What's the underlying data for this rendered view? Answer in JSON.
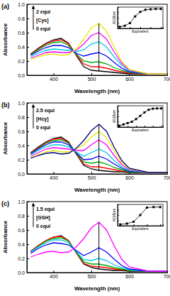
{
  "chart_data": [
    {
      "type": "line",
      "title": "(a)",
      "annotations": [
        "2 equi",
        "[Cys]",
        "0 equi"
      ],
      "x_label": "Wavelength (nm)",
      "y_label": "Absorbance",
      "x": [
        340,
        360,
        380,
        400,
        420,
        440,
        460,
        480,
        500,
        520,
        540,
        560,
        580,
        600,
        650,
        700
      ],
      "series": [
        {
          "color": "#000000",
          "values": [
            0.3,
            0.38,
            0.45,
            0.5,
            0.52,
            0.45,
            0.28,
            0.12,
            0.07,
            0.06,
            0.05,
            0.04,
            0.03,
            0.02,
            0.02,
            0.02
          ]
        },
        {
          "color": "#ff0000",
          "values": [
            0.3,
            0.37,
            0.44,
            0.48,
            0.5,
            0.44,
            0.29,
            0.16,
            0.12,
            0.12,
            0.1,
            0.07,
            0.05,
            0.03,
            0.02,
            0.02
          ]
        },
        {
          "color": "#00aa00",
          "values": [
            0.29,
            0.36,
            0.42,
            0.46,
            0.47,
            0.42,
            0.3,
            0.2,
            0.18,
            0.19,
            0.16,
            0.11,
            0.07,
            0.04,
            0.02,
            0.02
          ]
        },
        {
          "color": "#0000ff",
          "values": [
            0.28,
            0.34,
            0.39,
            0.42,
            0.42,
            0.39,
            0.31,
            0.27,
            0.3,
            0.32,
            0.27,
            0.18,
            0.1,
            0.05,
            0.02,
            0.02
          ]
        },
        {
          "color": "#00c8e8",
          "values": [
            0.26,
            0.31,
            0.35,
            0.37,
            0.36,
            0.35,
            0.33,
            0.36,
            0.44,
            0.47,
            0.4,
            0.26,
            0.14,
            0.06,
            0.02,
            0.02
          ]
        },
        {
          "color": "#ff00ff",
          "values": [
            0.24,
            0.28,
            0.32,
            0.33,
            0.32,
            0.32,
            0.35,
            0.44,
            0.56,
            0.6,
            0.51,
            0.33,
            0.17,
            0.07,
            0.02,
            0.02
          ]
        },
        {
          "color": "#e8e800",
          "values": [
            0.22,
            0.26,
            0.29,
            0.3,
            0.28,
            0.29,
            0.37,
            0.51,
            0.67,
            0.73,
            0.62,
            0.4,
            0.2,
            0.08,
            0.02,
            0.02
          ]
        }
      ],
      "xlim": [
        330,
        700
      ],
      "ylim": [
        0,
        1.0
      ],
      "xticks": [
        400,
        500,
        600,
        700
      ],
      "yticks": [
        {
          "value": 0,
          "label": "0.0"
        },
        {
          "value": 0.2,
          "label": "0.2"
        },
        {
          "value": 0.4,
          "label": "0.4"
        },
        {
          "value": 0.6,
          "label": "0.6"
        },
        {
          "value": 0.8,
          "label": "0.8"
        },
        {
          "value": 1.0,
          "label": "1.0"
        }
      ]
    },
    {
      "type": "line",
      "x_label": "Equivalent",
      "y_label": "A518nm",
      "x": [
        0,
        0.25,
        0.5,
        0.75,
        1,
        1.25,
        1.5,
        1.75,
        2
      ],
      "series": [
        {
          "color": "#000000",
          "marker": "square",
          "values": [
            0.06,
            0.1,
            0.2,
            0.45,
            0.62,
            0.7,
            0.72,
            0.73,
            0.73
          ]
        }
      ],
      "xlim": [
        -0.1,
        2.1
      ],
      "ylim": [
        0,
        0.8
      ],
      "xticks": [
        0,
        0.5,
        1,
        1.5,
        2
      ],
      "yticks": [
        0,
        0.2,
        0.4,
        0.6,
        0.8
      ],
      "tick_labels": false
    },
    {
      "type": "line",
      "title": "(b)",
      "annotations": [
        "2.5 equi",
        "[Hcy]",
        "0 equi"
      ],
      "x_label": "Wavelength (nm)",
      "y_label": "Absorbance",
      "x": [
        340,
        360,
        380,
        400,
        420,
        440,
        460,
        480,
        500,
        520,
        540,
        560,
        580,
        600,
        650,
        700
      ],
      "series": [
        {
          "color": "#000000",
          "values": [
            0.3,
            0.38,
            0.45,
            0.5,
            0.52,
            0.45,
            0.28,
            0.12,
            0.07,
            0.05,
            0.04,
            0.03,
            0.03,
            0.02,
            0.02,
            0.02
          ]
        },
        {
          "color": "#ff0000",
          "values": [
            0.3,
            0.37,
            0.44,
            0.49,
            0.5,
            0.44,
            0.28,
            0.14,
            0.1,
            0.1,
            0.08,
            0.06,
            0.04,
            0.03,
            0.02,
            0.02
          ]
        },
        {
          "color": "#00aa00",
          "values": [
            0.29,
            0.36,
            0.43,
            0.47,
            0.48,
            0.43,
            0.29,
            0.17,
            0.15,
            0.17,
            0.14,
            0.09,
            0.06,
            0.03,
            0.02,
            0.02
          ]
        },
        {
          "color": "#0000ff",
          "values": [
            0.28,
            0.35,
            0.41,
            0.45,
            0.45,
            0.41,
            0.3,
            0.2,
            0.21,
            0.25,
            0.21,
            0.14,
            0.08,
            0.04,
            0.02,
            0.02
          ]
        },
        {
          "color": "#00c8e8",
          "values": [
            0.27,
            0.33,
            0.38,
            0.41,
            0.41,
            0.38,
            0.31,
            0.25,
            0.3,
            0.35,
            0.3,
            0.19,
            0.1,
            0.05,
            0.02,
            0.02
          ]
        },
        {
          "color": "#ff00ff",
          "values": [
            0.25,
            0.3,
            0.35,
            0.37,
            0.36,
            0.35,
            0.33,
            0.33,
            0.41,
            0.48,
            0.41,
            0.26,
            0.13,
            0.06,
            0.02,
            0.02
          ]
        },
        {
          "color": "#e8e800",
          "values": [
            0.23,
            0.27,
            0.31,
            0.33,
            0.31,
            0.31,
            0.35,
            0.41,
            0.52,
            0.6,
            0.51,
            0.33,
            0.16,
            0.07,
            0.02,
            0.02
          ]
        },
        {
          "color": "#000080",
          "values": [
            0.22,
            0.26,
            0.29,
            0.3,
            0.28,
            0.29,
            0.36,
            0.47,
            0.61,
            0.7,
            0.6,
            0.38,
            0.19,
            0.08,
            0.02,
            0.02
          ]
        }
      ],
      "xlim": [
        330,
        700
      ],
      "ylim": [
        0,
        1.0
      ],
      "xticks": [
        400,
        500,
        600,
        700
      ],
      "yticks": [
        {
          "value": 0,
          "label": "0.0"
        },
        {
          "value": 0.2,
          "label": "0.2"
        },
        {
          "value": 0.4,
          "label": "0.4"
        },
        {
          "value": 0.6,
          "label": "0.6"
        },
        {
          "value": 0.8,
          "label": "0.8"
        },
        {
          "value": 1.0,
          "label": "1.0"
        }
      ]
    },
    {
      "type": "line",
      "x_label": "Equivalent",
      "y_label": "A518nm",
      "x": [
        0,
        0.25,
        0.5,
        0.75,
        1,
        1.25,
        1.5,
        1.75,
        2,
        2.25,
        2.5
      ],
      "series": [
        {
          "color": "#000000",
          "marker": "square",
          "values": [
            0.05,
            0.1,
            0.15,
            0.2,
            0.3,
            0.42,
            0.55,
            0.65,
            0.69,
            0.7,
            0.7
          ]
        }
      ],
      "xlim": [
        -0.1,
        2.6
      ],
      "ylim": [
        0,
        0.8
      ],
      "xticks": [
        0,
        0.5,
        1,
        1.5,
        2,
        2.5
      ],
      "yticks": [
        0,
        0.2,
        0.4,
        0.6,
        0.8
      ],
      "tick_labels": false
    },
    {
      "type": "line",
      "title": "(c)",
      "annotations": [
        "1.5 equi",
        "[GSH]",
        "0 equi"
      ],
      "x_label": "Wavelength (nm)",
      "y_label": "Absorbance",
      "x": [
        340,
        360,
        380,
        400,
        420,
        440,
        460,
        480,
        500,
        520,
        540,
        560,
        580,
        600,
        650,
        700
      ],
      "series": [
        {
          "color": "#000000",
          "values": [
            0.3,
            0.38,
            0.45,
            0.5,
            0.52,
            0.45,
            0.28,
            0.12,
            0.07,
            0.05,
            0.04,
            0.03,
            0.03,
            0.02,
            0.02,
            0.02
          ]
        },
        {
          "color": "#ff0000",
          "values": [
            0.3,
            0.38,
            0.45,
            0.5,
            0.51,
            0.45,
            0.28,
            0.13,
            0.09,
            0.08,
            0.07,
            0.05,
            0.04,
            0.03,
            0.02,
            0.02
          ]
        },
        {
          "color": "#00aa00",
          "values": [
            0.29,
            0.37,
            0.44,
            0.48,
            0.49,
            0.44,
            0.29,
            0.15,
            0.12,
            0.12,
            0.1,
            0.07,
            0.05,
            0.03,
            0.02,
            0.02
          ]
        },
        {
          "color": "#00c8e8",
          "values": [
            0.29,
            0.36,
            0.42,
            0.46,
            0.46,
            0.42,
            0.3,
            0.18,
            0.17,
            0.2,
            0.17,
            0.11,
            0.07,
            0.04,
            0.02,
            0.02
          ]
        },
        {
          "color": "#0000ff",
          "values": [
            0.27,
            0.34,
            0.39,
            0.42,
            0.41,
            0.39,
            0.31,
            0.24,
            0.29,
            0.35,
            0.29,
            0.19,
            0.1,
            0.05,
            0.02,
            0.02
          ]
        },
        {
          "color": "#ff00ff",
          "values": [
            0.22,
            0.26,
            0.29,
            0.3,
            0.28,
            0.29,
            0.36,
            0.48,
            0.63,
            0.71,
            0.6,
            0.38,
            0.19,
            0.08,
            0.02,
            0.02
          ]
        }
      ],
      "xlim": [
        330,
        700
      ],
      "ylim": [
        0,
        1.0
      ],
      "xticks": [
        400,
        500,
        600,
        700
      ],
      "yticks": [
        {
          "value": 0,
          "label": "0.0"
        },
        {
          "value": 0.2,
          "label": "0.2"
        },
        {
          "value": 0.4,
          "label": "0.4"
        },
        {
          "value": 0.6,
          "label": "0.6"
        },
        {
          "value": 0.8,
          "label": "0.8"
        },
        {
          "value": 1.0,
          "label": "1.0"
        }
      ]
    },
    {
      "type": "line",
      "x_label": "Equivalent",
      "y_label": "A518nm",
      "x": [
        0,
        0.25,
        0.5,
        0.75,
        1,
        1.25,
        1.5
      ],
      "series": [
        {
          "color": "#000000",
          "marker": "square",
          "values": [
            0.05,
            0.08,
            0.15,
            0.4,
            0.68,
            0.7,
            0.7
          ]
        }
      ],
      "xlim": [
        -0.1,
        1.6
      ],
      "ylim": [
        0,
        0.8
      ],
      "xticks": [
        0,
        0.5,
        1,
        1.5
      ],
      "yticks": [
        0,
        0.2,
        0.4,
        0.6,
        0.8
      ],
      "tick_labels": false
    }
  ]
}
